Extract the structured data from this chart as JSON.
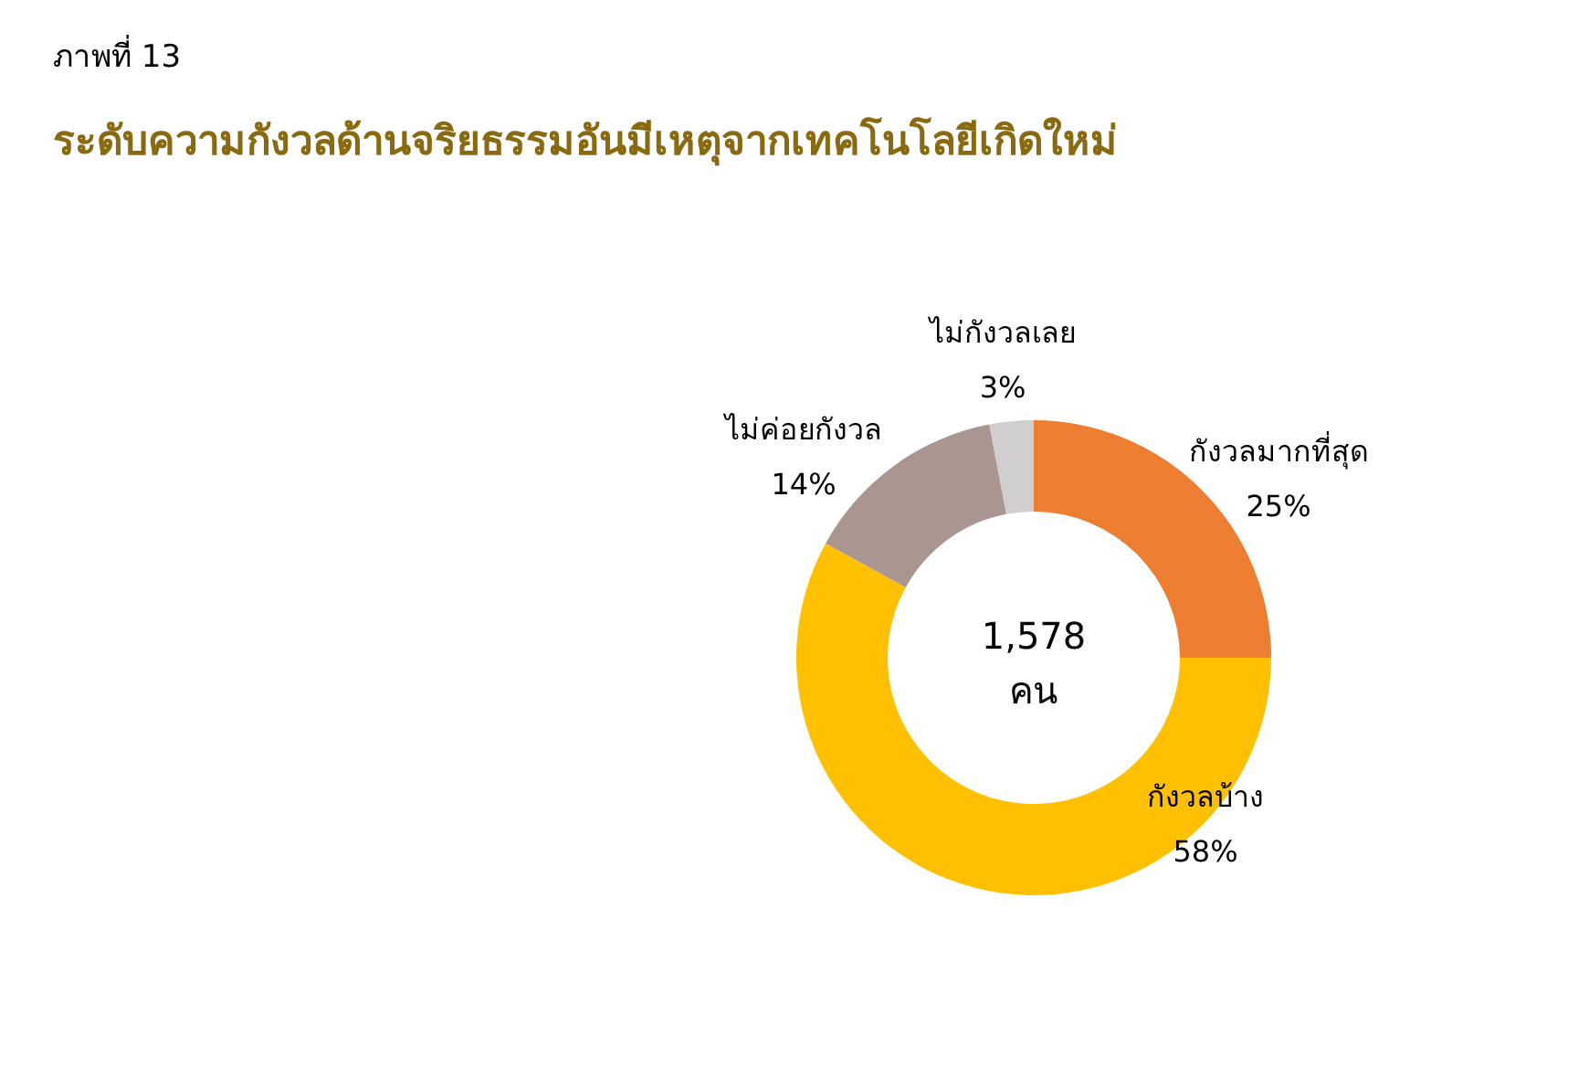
{
  "chart_data": {
    "type": "donut",
    "title": "ภาพที่ 13",
    "subtitle": "ระดับความกังวลด้านจริยธรรมอันมีเหตุจากเทคโนโลยีเกิดใหม่",
    "categories": [
      "กังวลมากที่สุด",
      "กังวลบ้าง",
      "ไม่ค่อยกังวล",
      "ไม่กังวลเลย"
    ],
    "values": [
      25,
      58,
      14,
      3
    ],
    "value_labels": [
      "25%",
      "58%",
      "14%",
      "3%"
    ],
    "colors": [
      "#ed7d31",
      "#ffc000",
      "#ab9590",
      "#d0cece"
    ],
    "annotations": [
      "1,578\nคน"
    ],
    "legend": false
  }
}
